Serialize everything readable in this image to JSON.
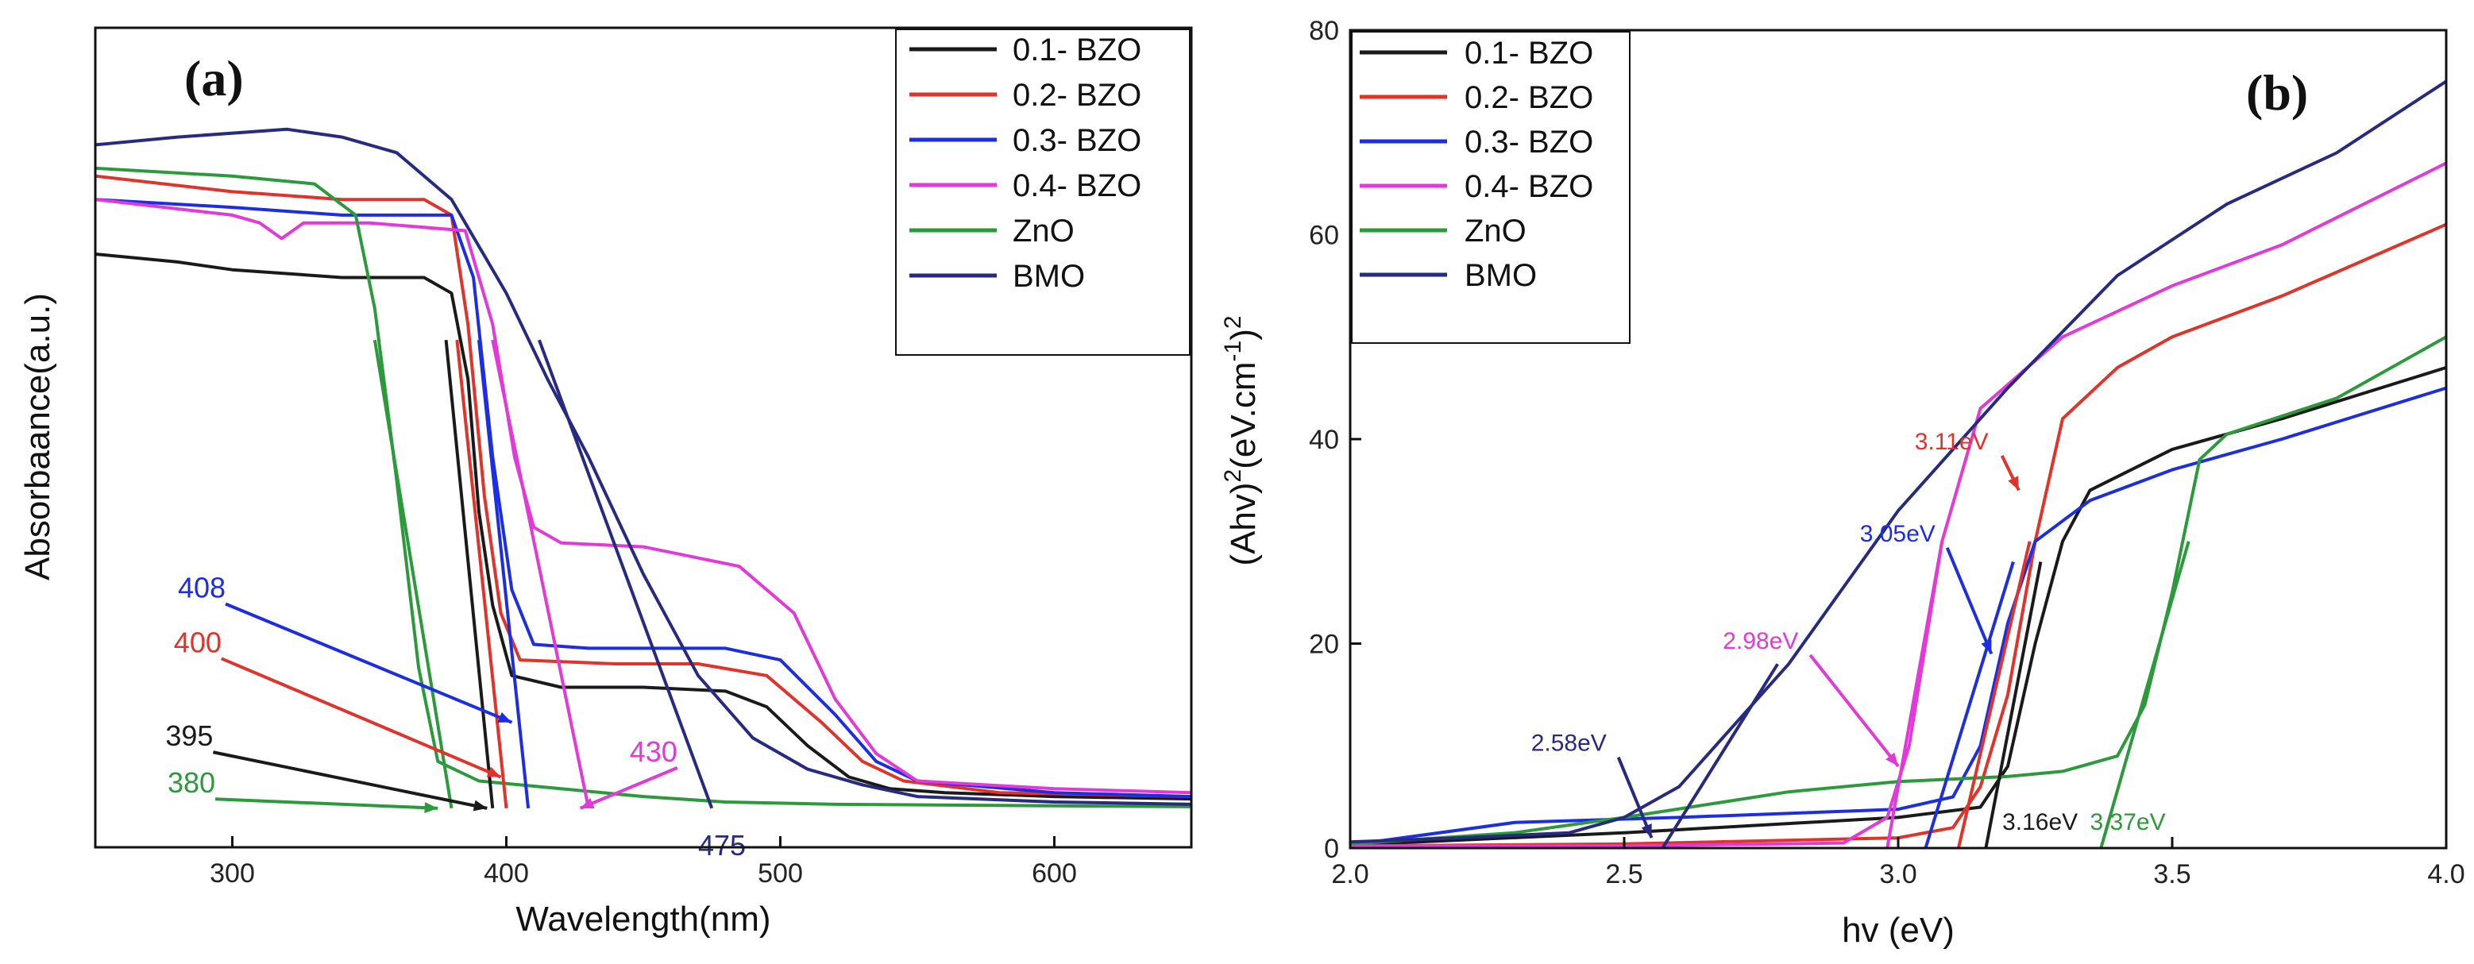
{
  "chart_data": [
    {
      "panel": "(a)",
      "type": "line",
      "xlabel": "Wavelength(nm)",
      "ylabel": "Absorbaance(a.u.)",
      "xlim": [
        250,
        650
      ],
      "ylim": [
        0,
        1.0
      ],
      "xticks": [
        300,
        400,
        500,
        600
      ],
      "yticks": [],
      "legend_position": "top-right",
      "series": [
        {
          "name": "0.1- BZO",
          "color": "#1a1a1a",
          "points": [
            [
              250,
              0.71
            ],
            [
              280,
              0.7
            ],
            [
              300,
              0.69
            ],
            [
              340,
              0.68
            ],
            [
              370,
              0.68
            ],
            [
              380,
              0.66
            ],
            [
              386,
              0.55
            ],
            [
              390,
              0.38
            ],
            [
              395,
              0.26
            ],
            [
              402,
              0.17
            ],
            [
              420,
              0.155
            ],
            [
              450,
              0.155
            ],
            [
              480,
              0.15
            ],
            [
              495,
              0.13
            ],
            [
              510,
              0.08
            ],
            [
              525,
              0.04
            ],
            [
              540,
              0.025
            ],
            [
              560,
              0.02
            ],
            [
              600,
              0.015
            ],
            [
              650,
              0.012
            ]
          ]
        },
        {
          "name": "0.2- BZO",
          "color": "#e0332a",
          "points": [
            [
              250,
              0.81
            ],
            [
              300,
              0.79
            ],
            [
              340,
              0.78
            ],
            [
              370,
              0.78
            ],
            [
              380,
              0.76
            ],
            [
              386,
              0.62
            ],
            [
              392,
              0.4
            ],
            [
              398,
              0.25
            ],
            [
              405,
              0.19
            ],
            [
              440,
              0.185
            ],
            [
              470,
              0.185
            ],
            [
              495,
              0.17
            ],
            [
              515,
              0.11
            ],
            [
              530,
              0.06
            ],
            [
              545,
              0.035
            ],
            [
              580,
              0.02
            ],
            [
              650,
              0.015
            ]
          ]
        },
        {
          "name": "0.3- BZO",
          "color": "#1c2ee0",
          "points": [
            [
              250,
              0.78
            ],
            [
              300,
              0.77
            ],
            [
              340,
              0.76
            ],
            [
              380,
              0.76
            ],
            [
              388,
              0.68
            ],
            [
              395,
              0.45
            ],
            [
              402,
              0.28
            ],
            [
              410,
              0.21
            ],
            [
              430,
              0.205
            ],
            [
              480,
              0.205
            ],
            [
              500,
              0.19
            ],
            [
              520,
              0.12
            ],
            [
              535,
              0.06
            ],
            [
              550,
              0.035
            ],
            [
              600,
              0.02
            ],
            [
              650,
              0.015
            ]
          ]
        },
        {
          "name": "0.4- BZO",
          "color": "#e23ad8",
          "points": [
            [
              250,
              0.78
            ],
            [
              300,
              0.76
            ],
            [
              310,
              0.75
            ],
            [
              318,
              0.73
            ],
            [
              326,
              0.75
            ],
            [
              350,
              0.75
            ],
            [
              385,
              0.74
            ],
            [
              395,
              0.62
            ],
            [
              403,
              0.45
            ],
            [
              410,
              0.36
            ],
            [
              420,
              0.34
            ],
            [
              450,
              0.335
            ],
            [
              485,
              0.31
            ],
            [
              505,
              0.25
            ],
            [
              520,
              0.14
            ],
            [
              535,
              0.07
            ],
            [
              550,
              0.035
            ],
            [
              600,
              0.025
            ],
            [
              650,
              0.02
            ]
          ]
        },
        {
          "name": "ZnO",
          "color": "#2c9a3c",
          "points": [
            [
              250,
              0.82
            ],
            [
              300,
              0.81
            ],
            [
              330,
              0.8
            ],
            [
              345,
              0.76
            ],
            [
              352,
              0.64
            ],
            [
              360,
              0.42
            ],
            [
              368,
              0.18
            ],
            [
              375,
              0.06
            ],
            [
              390,
              0.035
            ],
            [
              420,
              0.025
            ],
            [
              450,
              0.015
            ],
            [
              480,
              0.008
            ],
            [
              520,
              0.005
            ],
            [
              650,
              0.002
            ]
          ]
        },
        {
          "name": "BMO",
          "color": "#262a80",
          "points": [
            [
              250,
              0.85
            ],
            [
              280,
              0.86
            ],
            [
              320,
              0.87
            ],
            [
              340,
              0.86
            ],
            [
              360,
              0.84
            ],
            [
              380,
              0.78
            ],
            [
              400,
              0.66
            ],
            [
              415,
              0.55
            ],
            [
              430,
              0.45
            ],
            [
              450,
              0.3
            ],
            [
              470,
              0.17
            ],
            [
              490,
              0.09
            ],
            [
              510,
              0.05
            ],
            [
              530,
              0.03
            ],
            [
              550,
              0.015
            ],
            [
              600,
              0.008
            ],
            [
              650,
              0.005
            ]
          ]
        }
      ],
      "fit_lines": [
        {
          "color": "#1a1a1a",
          "from": [
            378,
            0.6
          ],
          "to": [
            395,
            0.0
          ]
        },
        {
          "color": "#e0332a",
          "from": [
            382,
            0.6
          ],
          "to": [
            400,
            0.0
          ]
        },
        {
          "color": "#1c2ee0",
          "from": [
            390,
            0.6
          ],
          "to": [
            408,
            0.0
          ]
        },
        {
          "color": "#e23ad8",
          "from": [
            395,
            0.6
          ],
          "to": [
            430,
            0.0
          ]
        },
        {
          "color": "#2c9a3c",
          "from": [
            352,
            0.6
          ],
          "to": [
            380,
            0.0
          ]
        },
        {
          "color": "#262a80",
          "from": [
            412,
            0.6
          ],
          "to": [
            475,
            0.0
          ]
        }
      ],
      "annotations": [
        {
          "text": "408",
          "color": "#1c2ee0",
          "at": [
            240,
            0.27
          ],
          "arrow_to": [
            402,
            0.11
          ]
        },
        {
          "text": "400",
          "color": "#e0332a",
          "at": [
            238,
            0.2
          ],
          "arrow_to": [
            398,
            0.04
          ]
        },
        {
          "text": "395",
          "color": "#1a1a1a",
          "at": [
            234,
            0.08
          ],
          "arrow_to": [
            393,
            0.0
          ]
        },
        {
          "text": "380",
          "color": "#2c9a3c",
          "at": [
            235,
            0.02
          ],
          "arrow_to": [
            375,
            0.0
          ]
        },
        {
          "text": "430",
          "color": "#e23ad8",
          "at": [
            445,
            0.06
          ],
          "arrow_to": [
            427,
            0.0
          ]
        },
        {
          "text": "475",
          "color": "#262a80",
          "at": [
            470,
            -0.06
          ]
        }
      ]
    },
    {
      "panel": "(b)",
      "type": "line",
      "xlabel": "hv (eV)",
      "ylabel_parts": [
        "(Ahv)",
        "2",
        "(eV.cm",
        "-1",
        ")",
        "2"
      ],
      "xlim": [
        2.0,
        4.0
      ],
      "ylim": [
        0,
        80
      ],
      "xticks": [
        2.0,
        2.5,
        3.0,
        3.5,
        4.0
      ],
      "xtick_labels": [
        "2.0",
        "2.5",
        "3.0",
        "3.5",
        "4.0"
      ],
      "yticks": [
        0,
        20,
        40,
        60,
        80
      ],
      "legend_position": "top-left",
      "series": [
        {
          "name": "0.1- BZO",
          "color": "#1a1a1a",
          "points": [
            [
              2.0,
              0.3
            ],
            [
              2.5,
              1.5
            ],
            [
              3.0,
              3
            ],
            [
              3.15,
              4
            ],
            [
              3.2,
              8
            ],
            [
              3.25,
              20
            ],
            [
              3.3,
              30
            ],
            [
              3.35,
              35
            ],
            [
              3.5,
              39
            ],
            [
              3.7,
              42
            ],
            [
              4.0,
              47
            ]
          ]
        },
        {
          "name": "0.2- BZO",
          "color": "#e0332a",
          "points": [
            [
              2.0,
              0.2
            ],
            [
              2.5,
              0.4
            ],
            [
              3.0,
              1
            ],
            [
              3.1,
              2
            ],
            [
              3.15,
              6
            ],
            [
              3.2,
              15
            ],
            [
              3.25,
              30
            ],
            [
              3.3,
              42
            ],
            [
              3.4,
              47
            ],
            [
              3.5,
              50
            ],
            [
              3.7,
              54
            ],
            [
              4.0,
              61
            ]
          ]
        },
        {
          "name": "0.3- BZO",
          "color": "#1c2ee0",
          "points": [
            [
              2.0,
              0.3
            ],
            [
              2.3,
              2.5
            ],
            [
              2.6,
              3
            ],
            [
              3.0,
              3.8
            ],
            [
              3.1,
              5
            ],
            [
              3.15,
              10
            ],
            [
              3.2,
              22
            ],
            [
              3.25,
              30
            ],
            [
              3.35,
              34
            ],
            [
              3.5,
              37
            ],
            [
              3.7,
              40
            ],
            [
              4.0,
              45
            ]
          ]
        },
        {
          "name": "0.4- BZO",
          "color": "#e23ad8",
          "points": [
            [
              2.0,
              0.2
            ],
            [
              2.5,
              0.2
            ],
            [
              2.9,
              0.5
            ],
            [
              2.98,
              3
            ],
            [
              3.02,
              10
            ],
            [
              3.08,
              30
            ],
            [
              3.15,
              43
            ],
            [
              3.3,
              50
            ],
            [
              3.5,
              55
            ],
            [
              3.7,
              59
            ],
            [
              4.0,
              67
            ]
          ]
        },
        {
          "name": "ZnO",
          "color": "#2c9a3c",
          "points": [
            [
              2.0,
              0.4
            ],
            [
              2.3,
              1.5
            ],
            [
              2.5,
              3
            ],
            [
              2.8,
              5.5
            ],
            [
              3.0,
              6.5
            ],
            [
              3.2,
              7
            ],
            [
              3.3,
              7.5
            ],
            [
              3.4,
              9
            ],
            [
              3.45,
              14
            ],
            [
              3.5,
              25
            ],
            [
              3.55,
              38
            ],
            [
              3.6,
              40.5
            ],
            [
              3.8,
              44
            ],
            [
              4.0,
              50
            ]
          ]
        },
        {
          "name": "BMO",
          "color": "#262a80",
          "points": [
            [
              2.0,
              0.6
            ],
            [
              2.2,
              1
            ],
            [
              2.4,
              1.5
            ],
            [
              2.5,
              3
            ],
            [
              2.6,
              6
            ],
            [
              2.8,
              18
            ],
            [
              3.0,
              33
            ],
            [
              3.2,
              45
            ],
            [
              3.4,
              56
            ],
            [
              3.6,
              63
            ],
            [
              3.8,
              68
            ],
            [
              4.0,
              75
            ]
          ]
        }
      ],
      "fit_lines": [
        {
          "color": "#1a1a1a",
          "from": [
            3.16,
            0
          ],
          "to": [
            3.26,
            28
          ]
        },
        {
          "color": "#e0332a",
          "from": [
            3.11,
            0
          ],
          "to": [
            3.24,
            30
          ]
        },
        {
          "color": "#1c2ee0",
          "from": [
            3.05,
            0
          ],
          "to": [
            3.21,
            28
          ]
        },
        {
          "color": "#e23ad8",
          "from": [
            2.98,
            0
          ],
          "to": [
            3.08,
            30
          ]
        },
        {
          "color": "#2c9a3c",
          "from": [
            3.37,
            0
          ],
          "to": [
            3.53,
            30
          ]
        },
        {
          "color": "#262a80",
          "from": [
            2.57,
            0
          ],
          "to": [
            2.78,
            18
          ]
        }
      ],
      "annotations": [
        {
          "text": "3.11eV",
          "color": "#e0332a",
          "at": [
            3.03,
            39
          ],
          "arrow_to": [
            3.22,
            35
          ]
        },
        {
          "text": "3.05eV",
          "color": "#1c2ee0",
          "at": [
            2.93,
            30
          ],
          "arrow_to": [
            3.17,
            19
          ]
        },
        {
          "text": "2.98eV",
          "color": "#e23ad8",
          "at": [
            2.68,
            19.5
          ],
          "arrow_to": [
            3.0,
            8
          ]
        },
        {
          "text": "2.58eV",
          "color": "#262a80",
          "at": [
            2.33,
            9.5
          ],
          "arrow_to": [
            2.55,
            1
          ]
        },
        {
          "text": "3.16eV",
          "color": "#1a1a1a",
          "at": [
            3.19,
            1.8
          ]
        },
        {
          "text": "3.37eV",
          "color": "#2c9a3c",
          "at": [
            3.35,
            1.8
          ]
        }
      ]
    }
  ]
}
